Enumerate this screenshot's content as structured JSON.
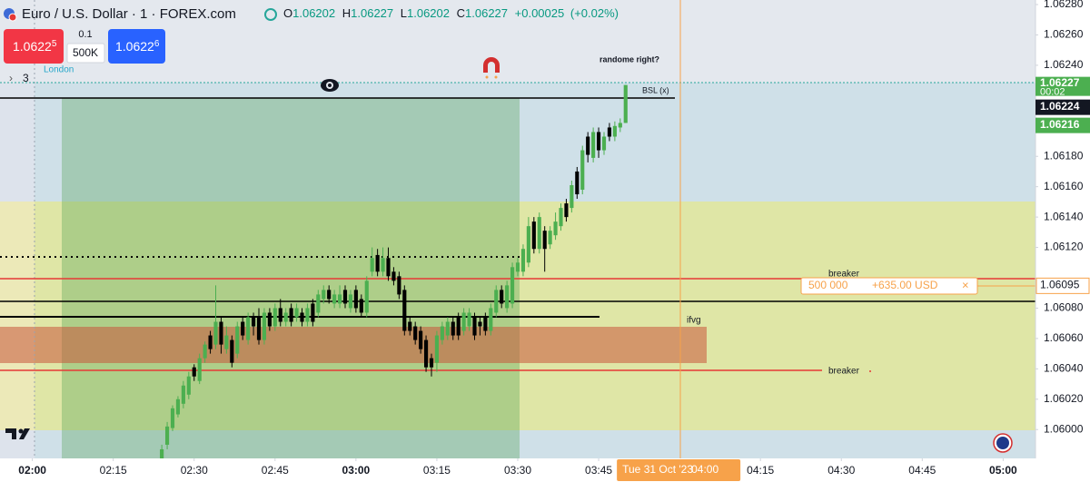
{
  "header": {
    "symbol": "Euro / U.S. Dollar · 1 · FOREX.com",
    "open_key": "O",
    "open": 1.06202,
    "high_key": "H",
    "high": 1.06227,
    "low_key": "L",
    "low": 1.06202,
    "close_key": "C",
    "close": 1.06227,
    "change": "+0.00025",
    "change_pct": "(+0.02%)"
  },
  "trade_panel": {
    "sell_price": "1.0622",
    "sell_pip": "5",
    "step": "0.1",
    "quantity": "500K",
    "buy_price": "1.0622",
    "buy_pip": "6"
  },
  "annotations": {
    "session": "London",
    "indicator_count": "3",
    "note": "randome right?",
    "bsl": "BSL (x)",
    "breaker_upper": "breaker",
    "breaker_lower": "breaker",
    "ifvg": "ifvg"
  },
  "position": {
    "quantity": "500 000",
    "pnl": "+635.00 USD",
    "close": "×"
  },
  "chart_data": {
    "type": "candlestick",
    "up_color": "#4caf50",
    "down_color": "#000000",
    "x": [
      "02:24",
      "02:25",
      "02:26",
      "02:27",
      "02:28",
      "02:29",
      "02:30",
      "02:31",
      "02:32",
      "02:33",
      "02:34",
      "02:35",
      "02:36",
      "02:37",
      "02:38",
      "02:39",
      "02:40",
      "02:41",
      "02:42",
      "02:43",
      "02:44",
      "02:45",
      "02:46",
      "02:47",
      "02:48",
      "02:49",
      "02:50",
      "02:51",
      "02:52",
      "02:53",
      "02:54",
      "02:55",
      "02:56",
      "02:57",
      "02:58",
      "02:59",
      "03:00",
      "03:01",
      "03:02",
      "03:03",
      "03:04",
      "03:05",
      "03:06",
      "03:07",
      "03:08",
      "03:09",
      "03:10",
      "03:11",
      "03:12",
      "03:13",
      "03:14",
      "03:15",
      "03:16",
      "03:17",
      "03:18",
      "03:19",
      "03:20",
      "03:21",
      "03:22",
      "03:23",
      "03:24",
      "03:25",
      "03:26",
      "03:27",
      "03:28",
      "03:29",
      "03:30",
      "03:31",
      "03:32",
      "03:33",
      "03:34",
      "03:35",
      "03:36",
      "03:37",
      "03:38",
      "03:39",
      "03:40",
      "03:41",
      "03:42",
      "03:43",
      "03:44",
      "03:45",
      "03:46",
      "03:47",
      "03:48",
      "03:49",
      "03:50"
    ],
    "open": [
      1.05981,
      1.0599,
      1.06001,
      1.0601,
      1.06017,
      1.06023,
      1.06041,
      1.06032,
      1.06047,
      1.06062,
      1.06056,
      1.06071,
      1.06053,
      1.06059,
      1.0605,
      1.06071,
      1.06059,
      1.06074,
      1.06074,
      1.06059,
      1.06077,
      1.06068,
      1.0608,
      1.06071,
      1.0608,
      1.06074,
      1.06077,
      1.06071,
      1.06083,
      1.06077,
      1.06086,
      1.06092,
      1.06083,
      1.06083,
      1.06092,
      1.0608,
      1.06092,
      1.06086,
      1.06077,
      1.06104,
      1.06115,
      1.06104,
      1.06113,
      1.06104,
      1.06101,
      1.06092,
      1.06071,
      1.06068,
      1.06065,
      1.06059,
      1.06047,
      1.06044,
      1.06059,
      1.06062,
      1.06071,
      1.06074,
      1.06065,
      1.06068,
      1.06074,
      1.06071,
      1.06074,
      1.06065,
      1.06077,
      1.06092,
      1.0608,
      1.06083,
      1.06104,
      1.06104,
      1.0611,
      1.06137,
      1.06119,
      1.06131,
      1.06122,
      1.06128,
      1.06134,
      1.06149,
      1.06146,
      1.0617,
      1.06158,
      1.06193,
      1.06179,
      1.06196,
      1.06184,
      1.06199,
      1.06193,
      1.06199,
      1.06202
    ],
    "high": [
      1.0599,
      1.06005,
      1.06016,
      1.06022,
      1.06032,
      1.06038,
      1.06043,
      1.0605,
      1.06058,
      1.06065,
      1.06095,
      1.06074,
      1.06068,
      1.06062,
      1.06071,
      1.06074,
      1.06077,
      1.06077,
      1.0608,
      1.0608,
      1.0608,
      1.06083,
      1.06086,
      1.0608,
      1.06083,
      1.06083,
      1.0608,
      1.06083,
      1.06086,
      1.06092,
      1.06095,
      1.06095,
      1.06092,
      1.06095,
      1.06095,
      1.06092,
      1.06095,
      1.06089,
      1.06101,
      1.0612,
      1.06119,
      1.0612,
      1.0612,
      1.06107,
      1.06104,
      1.06095,
      1.06074,
      1.06071,
      1.06068,
      1.06062,
      1.0605,
      1.06065,
      1.06071,
      1.06074,
      1.06074,
      1.06077,
      1.0608,
      1.0608,
      1.06077,
      1.06074,
      1.06077,
      1.06083,
      1.06095,
      1.06095,
      1.06098,
      1.0611,
      1.06113,
      1.06122,
      1.0614,
      1.0614,
      1.06143,
      1.06134,
      1.06134,
      1.06143,
      1.06149,
      1.06152,
      1.06164,
      1.06173,
      1.06187,
      1.06196,
      1.06199,
      1.06199,
      1.06196,
      1.06202,
      1.06203,
      1.06205,
      1.06227
    ],
    "low": [
      1.05981,
      1.05987,
      1.05999,
      1.06008,
      1.06014,
      1.0602,
      1.06032,
      1.0603,
      1.06044,
      1.0605,
      1.06053,
      1.0605,
      1.0605,
      1.06041,
      1.06047,
      1.06059,
      1.06056,
      1.06062,
      1.06056,
      1.06056,
      1.06065,
      1.06065,
      1.06068,
      1.06068,
      1.06068,
      1.06071,
      1.06068,
      1.06068,
      1.06068,
      1.06074,
      1.06083,
      1.06083,
      1.0608,
      1.0608,
      1.0608,
      1.06077,
      1.06077,
      1.06074,
      1.06074,
      1.06101,
      1.06101,
      1.06101,
      1.06098,
      1.06095,
      1.06086,
      1.06062,
      1.06062,
      1.06056,
      1.0605,
      1.06038,
      1.06035,
      1.06038,
      1.06056,
      1.06059,
      1.06059,
      1.06059,
      1.06062,
      1.06065,
      1.06059,
      1.06062,
      1.06062,
      1.06062,
      1.06074,
      1.0608,
      1.06077,
      1.0608,
      1.06101,
      1.06101,
      1.06107,
      1.06116,
      1.06116,
      1.06104,
      1.06119,
      1.06125,
      1.06131,
      1.06137,
      1.06143,
      1.06152,
      1.06155,
      1.06176,
      1.06176,
      1.06179,
      1.06181,
      1.0619,
      1.0619,
      1.06196,
      1.06202
    ],
    "close": [
      1.05987,
      1.06002,
      1.06014,
      1.0602,
      1.06029,
      1.06035,
      1.06035,
      1.06047,
      1.06056,
      1.06053,
      1.06071,
      1.06056,
      1.06062,
      1.06044,
      1.06068,
      1.06062,
      1.06074,
      1.06068,
      1.06059,
      1.06077,
      1.06068,
      1.0608,
      1.06071,
      1.06077,
      1.06071,
      1.0608,
      1.06071,
      1.0608,
      1.06071,
      1.06089,
      1.06092,
      1.06086,
      1.06089,
      1.06089,
      1.06083,
      1.06089,
      1.0608,
      1.06077,
      1.06098,
      1.06113,
      1.06104,
      1.06113,
      1.06101,
      1.06098,
      1.06089,
      1.06065,
      1.06065,
      1.06059,
      1.06053,
      1.06041,
      1.06041,
      1.06062,
      1.06068,
      1.06071,
      1.06062,
      1.06062,
      1.06077,
      1.06077,
      1.06062,
      1.06068,
      1.06065,
      1.0608,
      1.06092,
      1.06083,
      1.06095,
      1.06107,
      1.0611,
      1.06119,
      1.06134,
      1.06119,
      1.0614,
      1.06119,
      1.06131,
      1.06137,
      1.06146,
      1.0614,
      1.06161,
      1.06155,
      1.06184,
      1.06181,
      1.06196,
      1.06184,
      1.06193,
      1.06193,
      1.062,
      1.06202,
      1.06227
    ],
    "xlim": [
      "01:54",
      "05:06"
    ],
    "xticks": [
      "02:00",
      "02:15",
      "02:30",
      "02:45",
      "03:00",
      "03:15",
      "03:30",
      "03:45",
      "04:15",
      "04:30",
      "04:45",
      "05:00"
    ],
    "xticks_bold": [
      "02:00",
      "03:00",
      "05:00"
    ],
    "ylim": [
      1.05981,
      1.06283
    ],
    "yticks": [
      {
        "value": 1.06,
        "label": "1.06000"
      },
      {
        "value": 1.0602,
        "label": "1.06020"
      },
      {
        "value": 1.0604,
        "label": "1.06040"
      },
      {
        "value": 1.0606,
        "label": "1.06060"
      },
      {
        "value": 1.0608,
        "label": "1.06080"
      },
      {
        "value": 1.0612,
        "label": "1.06120"
      },
      {
        "value": 1.0614,
        "label": "1.06140"
      },
      {
        "value": 1.0616,
        "label": "1.06160"
      },
      {
        "value": 1.0618,
        "label": "1.06180"
      },
      {
        "value": 1.0624,
        "label": "1.06240"
      },
      {
        "value": 1.0626,
        "label": "1.06260"
      },
      {
        "value": 1.0628,
        "label": "1.06280"
      }
    ],
    "grid": false,
    "last_price": 1.06227,
    "countdown": "00:02",
    "price_labels": [
      {
        "value": 1.06224,
        "color": "#131722"
      },
      {
        "value": 1.06216,
        "color": "#4caf50"
      }
    ],
    "position_price": 1.06095,
    "crosshair": {
      "date": "Tue 31 Oct '23",
      "time": "04:00"
    }
  }
}
